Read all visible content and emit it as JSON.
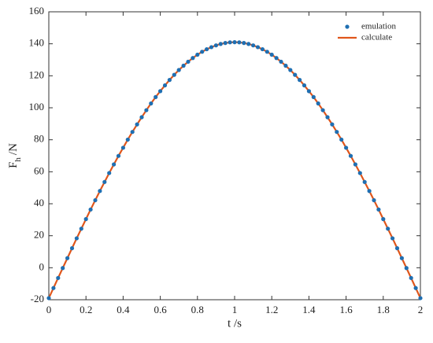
{
  "chart_data": {
    "type": "line",
    "xlabel": "t /s",
    "ylabel": {
      "main": "F",
      "subscript": "h",
      "unit": "/N"
    },
    "x": [
      0,
      0.025,
      0.05,
      0.075,
      0.1,
      0.125,
      0.15,
      0.175,
      0.2,
      0.225,
      0.25,
      0.275,
      0.3,
      0.325,
      0.35,
      0.375,
      0.4,
      0.425,
      0.45,
      0.475,
      0.5,
      0.525,
      0.55,
      0.575,
      0.6,
      0.625,
      0.65,
      0.675,
      0.7,
      0.725,
      0.75,
      0.775,
      0.8,
      0.825,
      0.85,
      0.875,
      0.9,
      0.925,
      0.95,
      0.975,
      1,
      1.025,
      1.05,
      1.075,
      1.1,
      1.125,
      1.15,
      1.175,
      1.2,
      1.225,
      1.25,
      1.275,
      1.3,
      1.325,
      1.35,
      1.375,
      1.4,
      1.425,
      1.45,
      1.475,
      1.5,
      1.525,
      1.55,
      1.575,
      1.6,
      1.625,
      1.65,
      1.675,
      1.7,
      1.725,
      1.75,
      1.775,
      1.8,
      1.825,
      1.85,
      1.875,
      1.9,
      1.925,
      1.95,
      1.975,
      2
    ],
    "series": [
      {
        "name": "emulation",
        "color": "#1f6fb2",
        "style": "marker",
        "values": [
          -19,
          -12.7,
          -6.4,
          -0.2,
          6.0,
          12.2,
          18.4,
          24.4,
          30.4,
          36.4,
          42.2,
          48.0,
          53.6,
          59.2,
          64.6,
          69.9,
          75.0,
          80.1,
          84.9,
          89.6,
          94.1,
          98.5,
          102.7,
          106.7,
          110.4,
          114.0,
          117.4,
          120.6,
          123.6,
          126.3,
          128.8,
          131.1,
          133.2,
          135.0,
          136.6,
          137.9,
          139.0,
          139.9,
          140.5,
          140.9,
          141.0,
          140.9,
          140.5,
          139.9,
          139.0,
          137.9,
          136.6,
          135.0,
          133.2,
          131.1,
          128.8,
          126.3,
          123.6,
          120.6,
          117.4,
          114.0,
          110.4,
          106.7,
          102.7,
          98.5,
          94.1,
          89.6,
          84.9,
          80.1,
          75.0,
          69.9,
          64.6,
          59.2,
          53.6,
          48.0,
          42.2,
          36.4,
          30.4,
          24.4,
          18.4,
          12.2,
          6.0,
          -0.2,
          -6.4,
          -12.7,
          -19
        ]
      },
      {
        "name": "calculate",
        "color": "#e0561b",
        "style": "line",
        "values": [
          -19,
          -12.7,
          -6.4,
          -0.2,
          6.0,
          12.2,
          18.4,
          24.4,
          30.4,
          36.4,
          42.2,
          48.0,
          53.6,
          59.2,
          64.6,
          69.9,
          75.0,
          80.1,
          84.9,
          89.6,
          94.1,
          98.5,
          102.7,
          106.7,
          110.4,
          114.0,
          117.4,
          120.6,
          123.6,
          126.3,
          128.8,
          131.1,
          133.2,
          135.0,
          136.6,
          137.9,
          139.0,
          139.9,
          140.5,
          140.9,
          141.0,
          140.9,
          140.5,
          139.9,
          139.0,
          137.9,
          136.6,
          135.0,
          133.2,
          131.1,
          128.8,
          126.3,
          123.6,
          120.6,
          117.4,
          114.0,
          110.4,
          106.7,
          102.7,
          98.5,
          94.1,
          89.6,
          84.9,
          80.1,
          75.0,
          69.9,
          64.6,
          59.2,
          53.6,
          48.0,
          42.2,
          36.4,
          30.4,
          24.4,
          18.4,
          12.2,
          6.0,
          -0.2,
          -6.4,
          -12.7,
          -19
        ]
      }
    ],
    "xlim": [
      0,
      2
    ],
    "xticks": [
      0,
      0.2,
      0.4,
      0.6,
      0.8,
      1,
      1.2,
      1.4,
      1.6,
      1.8,
      2
    ],
    "ylim": [
      -20,
      160
    ],
    "yticks": [
      -20,
      0,
      20,
      40,
      60,
      80,
      100,
      120,
      140,
      160
    ],
    "grid": false,
    "legend": "upper-right"
  }
}
